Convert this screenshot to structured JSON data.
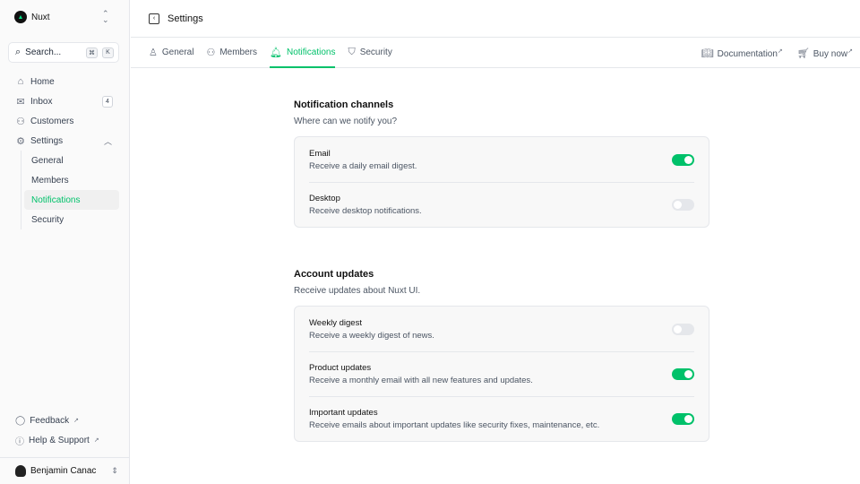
{
  "sidebar": {
    "brand": "Nuxt",
    "search": {
      "placeholder": "Search...",
      "kbd": [
        "⌘",
        "K"
      ]
    },
    "items": [
      {
        "label": "Home",
        "icon": "home-icon"
      },
      {
        "label": "Inbox",
        "icon": "inbox-icon",
        "badge": "4"
      },
      {
        "label": "Customers",
        "icon": "users-icon"
      },
      {
        "label": "Settings",
        "icon": "gear-icon"
      }
    ],
    "settings_children": [
      "General",
      "Members",
      "Notifications",
      "Security"
    ],
    "footer": [
      {
        "label": "Feedback",
        "icon": "chat-icon"
      },
      {
        "label": "Help & Support",
        "icon": "info-icon"
      }
    ],
    "user": "Benjamin Canac"
  },
  "header": {
    "title": "Settings"
  },
  "tabs": [
    {
      "label": "General"
    },
    {
      "label": "Members"
    },
    {
      "label": "Notifications",
      "active": true
    },
    {
      "label": "Security"
    }
  ],
  "links": {
    "documentation": "Documentation",
    "buy": "Buy now"
  },
  "sections": [
    {
      "title": "Notification channels",
      "description": "Where can we notify you?",
      "rows": [
        {
          "label": "Email",
          "description": "Receive a daily email digest.",
          "on": true
        },
        {
          "label": "Desktop",
          "description": "Receive desktop notifications.",
          "on": false
        }
      ]
    },
    {
      "title": "Account updates",
      "description": "Receive updates about Nuxt UI.",
      "rows": [
        {
          "label": "Weekly digest",
          "description": "Receive a weekly digest of news.",
          "on": false
        },
        {
          "label": "Product updates",
          "description": "Receive a monthly email with all new features and updates.",
          "on": true
        },
        {
          "label": "Important updates",
          "description": "Receive emails about important updates like security fixes, maintenance, etc.",
          "on": true
        }
      ]
    }
  ],
  "colors": {
    "accent": "#00c16a"
  }
}
